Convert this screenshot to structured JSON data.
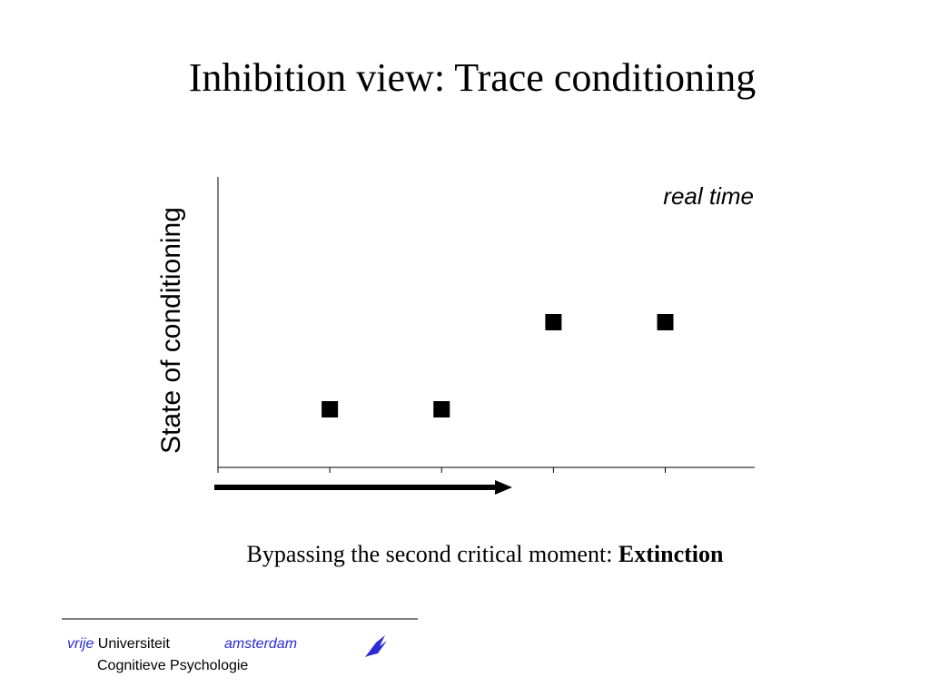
{
  "chart_data": {
    "type": "scatter",
    "title": "Inhibition view: Trace conditioning",
    "y_label": "State of conditioning",
    "annotation": "real time",
    "caption": "Bypassing the second critical moment:",
    "caption_emphasis": "Extinction",
    "x": [
      1,
      2,
      3,
      4
    ],
    "values": [
      1,
      1,
      2.5,
      2.5
    ],
    "color": "#000000",
    "xlim": [
      0,
      4.8
    ],
    "ylim": [
      0,
      5
    ],
    "xticks": [
      0,
      1,
      2,
      3,
      4
    ]
  },
  "footer": {
    "vrije": "vrije",
    "universiteit": "Universiteit",
    "amsterdam": "amsterdam",
    "department": "Cognitieve Psychologie"
  }
}
